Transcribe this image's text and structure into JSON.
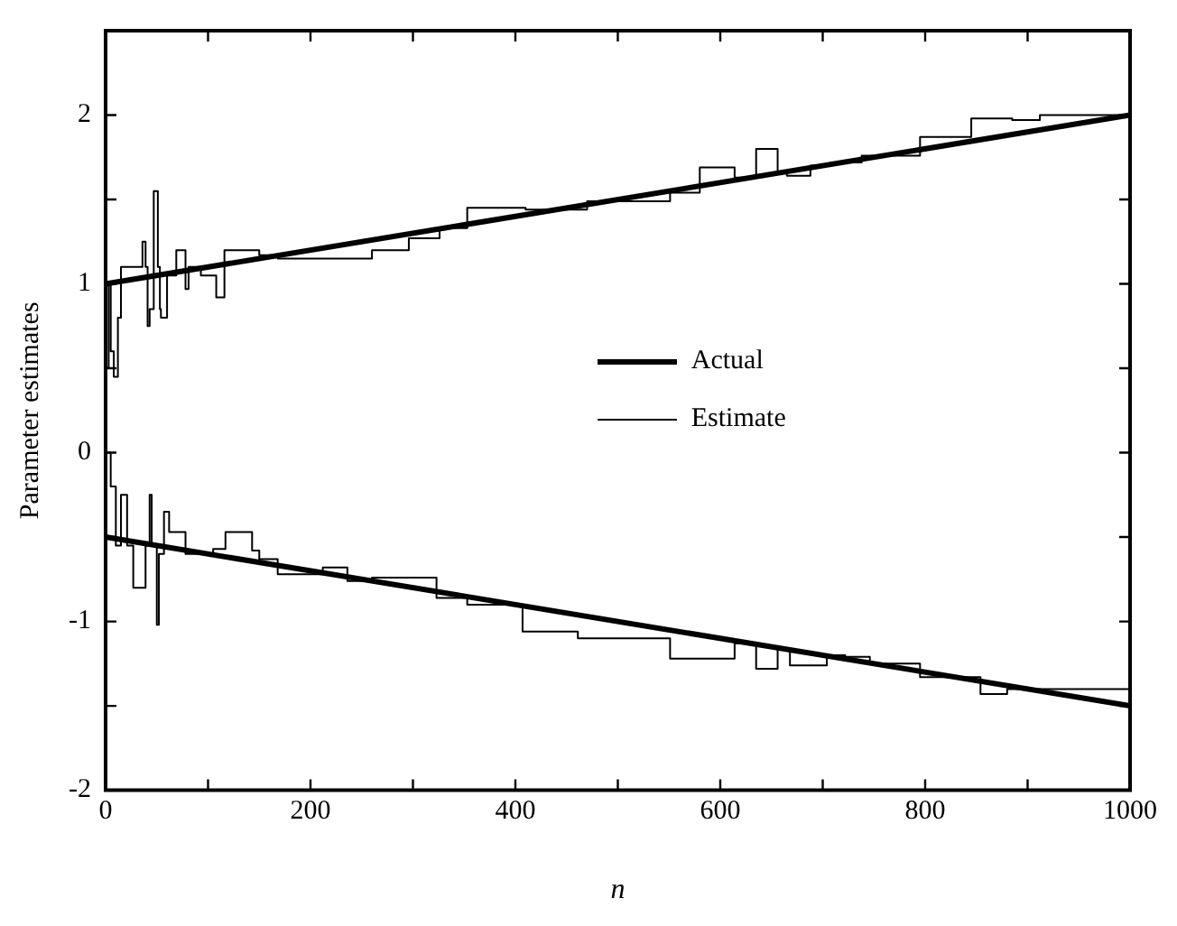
{
  "chart_data": {
    "type": "line",
    "xlabel": "n",
    "ylabel": "Parameter estimates",
    "xlim": [
      0,
      1000
    ],
    "ylim": [
      -2,
      2.5
    ],
    "xticks": [
      0,
      {
        "value": 100,
        "label": null
      },
      200,
      {
        "value": 300,
        "label": null
      },
      400,
      {
        "value": 500,
        "label": null
      },
      600,
      {
        "value": 700,
        "label": null
      },
      800,
      {
        "value": 900,
        "label": null
      },
      1000
    ],
    "yticks": [
      -2,
      {
        "value": -1.5,
        "label": null
      },
      -1,
      {
        "value": -0.5,
        "label": null
      },
      0,
      {
        "value": 0.5,
        "label": null
      },
      1,
      {
        "value": 1.5,
        "label": null
      },
      2
    ],
    "grid": false,
    "legend": "right",
    "marker": "none",
    "series": [
      {
        "name": "Actual",
        "color": "#000000",
        "x": [
          0,
          1000
        ],
        "values": [
          1,
          2
        ]
      },
      {
        "color": "#000000",
        "x": [
          0,
          1000
        ],
        "values": [
          -0.5,
          -1.5
        ]
      },
      {
        "name": "Estimate",
        "type": "step",
        "color": "#000000",
        "x": [
          0,
          3,
          5,
          8,
          12,
          15,
          20,
          36,
          39,
          41,
          43,
          47,
          51,
          53,
          54,
          60,
          69,
          78,
          81,
          93,
          108,
          116,
          150,
          168,
          260,
          296,
          326,
          353,
          410,
          470,
          551,
          580,
          614,
          635,
          656,
          665,
          688,
          708,
          738,
          795,
          845,
          885,
          912,
          1000
        ],
        "values": [
          0.2,
          0.5,
          1.0,
          0.6,
          0.45,
          0.8,
          1.1,
          1.1,
          1.25,
          1.1,
          0.75,
          0.85,
          1.55,
          1.1,
          0.85,
          0.8,
          1.05,
          1.2,
          0.97,
          1.1,
          1.05,
          0.92,
          1.2,
          1.17,
          1.15,
          1.2,
          1.27,
          1.33,
          1.45,
          1.44,
          1.49,
          1.54,
          1.69,
          1.63,
          1.8,
          1.66,
          1.64,
          1.7,
          1.72,
          1.76,
          1.87,
          1.98,
          1.97,
          2.0
        ]
      },
      {
        "type": "step",
        "color": "#000000",
        "x": [
          0,
          5,
          10,
          15,
          21,
          27,
          39,
          43,
          45,
          50,
          52,
          57,
          62,
          78,
          105,
          117,
          143,
          150,
          168,
          212,
          236,
          260,
          323,
          353,
          407,
          461,
          551,
          614,
          635,
          656,
          668,
          704,
          722,
          746,
          795,
          854,
          880,
          904,
          1000
        ],
        "values": [
          -0.2,
          0,
          -0.2,
          -0.55,
          -0.25,
          -0.55,
          -0.8,
          -0.55,
          -0.25,
          -0.55,
          -1.02,
          -0.6,
          -0.35,
          -0.47,
          -0.6,
          -0.57,
          -0.47,
          -0.58,
          -0.63,
          -0.72,
          -0.68,
          -0.76,
          -0.74,
          -0.86,
          -0.9,
          -1.06,
          -1.1,
          -1.22,
          -1.13,
          -1.28,
          -1.16,
          -1.26,
          -1.2,
          -1.21,
          -1.25,
          -1.33,
          -1.43,
          -1.4,
          -1.4
        ]
      }
    ]
  }
}
